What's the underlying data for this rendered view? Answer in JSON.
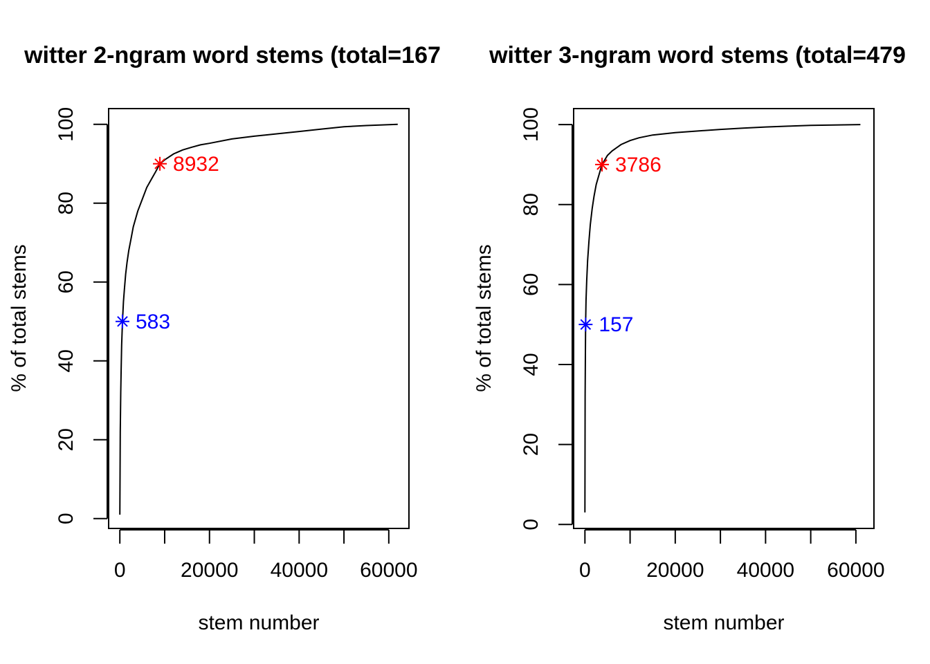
{
  "colors": {
    "line": "#000000",
    "median": "#0000FF",
    "p90": "#FF0000"
  },
  "chart_data": [
    {
      "type": "line",
      "title": "witter 2-ngram word stems (total=167",
      "xlabel": "stem number",
      "ylabel": "% of total stems",
      "xlim": [
        -2500,
        64500
      ],
      "ylim": [
        -2.5,
        104
      ],
      "xticks": [
        0,
        10000,
        20000,
        30000,
        40000,
        50000,
        60000
      ],
      "xtick_labels": [
        "0",
        "20000",
        "40000",
        "60000"
      ],
      "xtick_label_values": [
        0,
        20000,
        40000,
        60000
      ],
      "yticks": [
        0,
        20,
        40,
        60,
        80,
        100
      ],
      "ytick_labels": [
        "0",
        "20",
        "40",
        "60",
        "80",
        "100"
      ],
      "grid": false,
      "series": [
        {
          "x": [
            1,
            100,
            200,
            300,
            400,
            583,
            800,
            1000,
            1300,
            1600,
            2000,
            2500,
            3000,
            4000,
            5000,
            6000,
            7000,
            8000,
            8932,
            10000,
            12000,
            14000,
            16000,
            18000,
            20000,
            25000,
            30000,
            35000,
            40000,
            45000,
            50000,
            55000,
            62000
          ],
          "y": [
            1,
            22,
            32,
            38,
            44,
            50,
            55,
            58,
            62,
            65,
            68,
            71,
            74,
            78,
            81,
            84,
            86,
            88,
            90,
            91,
            92.5,
            93.5,
            94.2,
            94.8,
            95.2,
            96.3,
            97.0,
            97.6,
            98.2,
            98.8,
            99.4,
            99.7,
            100
          ]
        }
      ],
      "annotations": [
        {
          "x": 583,
          "y": 50,
          "label": "583",
          "color": "#0000FF"
        },
        {
          "x": 8932,
          "y": 90,
          "label": "8932",
          "color": "#FF0000"
        }
      ]
    },
    {
      "type": "line",
      "title": "witter 3-ngram word stems (total=479",
      "xlabel": "stem number",
      "ylabel": "% of total stems",
      "xlim": [
        -2500,
        64000
      ],
      "ylim": [
        -1,
        104
      ],
      "xticks": [
        0,
        10000,
        20000,
        30000,
        40000,
        50000,
        60000
      ],
      "xtick_labels": [
        "0",
        "20000",
        "40000",
        "60000"
      ],
      "xtick_label_values": [
        0,
        20000,
        40000,
        60000
      ],
      "yticks": [
        0,
        20,
        40,
        60,
        80,
        100
      ],
      "ytick_labels": [
        "0",
        "20",
        "40",
        "60",
        "80",
        "100"
      ],
      "grid": false,
      "series": [
        {
          "x": [
            1,
            50,
            100,
            157,
            250,
            400,
            600,
            900,
            1200,
            1600,
            2000,
            2500,
            3000,
            3786,
            5000,
            6000,
            8000,
            10000,
            12000,
            15000,
            20000,
            25000,
            30000,
            35000,
            40000,
            45000,
            50000,
            55000,
            61000
          ],
          "y": [
            3,
            32,
            43,
            50,
            56,
            61,
            66,
            71,
            75,
            79,
            82,
            85,
            87,
            90,
            92.3,
            93.4,
            95.0,
            96.0,
            96.7,
            97.4,
            98.0,
            98.4,
            98.8,
            99.1,
            99.4,
            99.6,
            99.8,
            99.9,
            100
          ]
        }
      ],
      "annotations": [
        {
          "x": 157,
          "y": 50,
          "label": "157",
          "color": "#0000FF"
        },
        {
          "x": 3786,
          "y": 90,
          "label": "3786",
          "color": "#FF0000"
        }
      ]
    }
  ]
}
